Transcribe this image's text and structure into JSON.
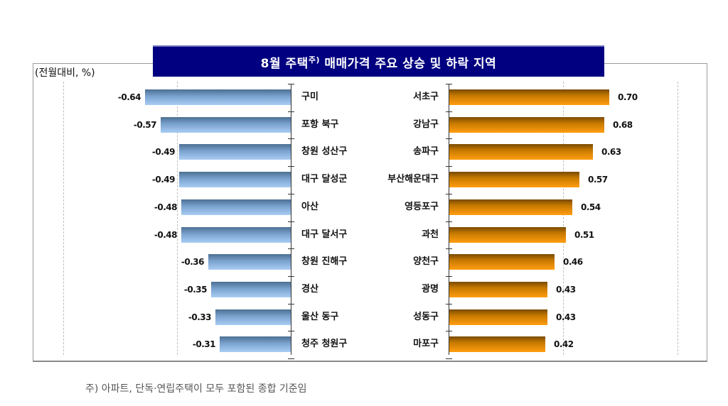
{
  "title": {
    "main_before": "8월 주택",
    "superscript": "주)",
    "main_after": " 매매가격 주요 상승 및 하락 지역"
  },
  "unit_label": "(전월대비, %)",
  "footnote": "주) 아파트, 단독·연립주택이 모두 포함된 종합 기준임",
  "colors": {
    "title_bg": "#000080",
    "decline_bar": "#7aa3cf",
    "rise_bar": "#ff9d10"
  },
  "chart_data": [
    {
      "type": "bar",
      "orientation": "horizontal",
      "title": "8월 주택 매매가격 주요 하락 지역",
      "xlabel": "(전월대비, %)",
      "ylabel": "",
      "categories": [
        "구미",
        "포항 북구",
        "창원 성산구",
        "대구 달성군",
        "아산",
        "대구 달서구",
        "창원 진해구",
        "경산",
        "울산 동구",
        "청주 청원구"
      ],
      "values": [
        -0.64,
        -0.57,
        -0.49,
        -0.49,
        -0.48,
        -0.48,
        -0.36,
        -0.35,
        -0.33,
        -0.31
      ],
      "xlim": [
        -1.0,
        0
      ],
      "grid": true,
      "gridlines": [
        -1.0,
        -0.5
      ]
    },
    {
      "type": "bar",
      "orientation": "horizontal",
      "title": "8월 주택 매매가격 주요 상승 지역",
      "xlabel": "(전월대비, %)",
      "ylabel": "",
      "categories": [
        "서초구",
        "강남구",
        "송파구",
        "부산해운대구",
        "영등포구",
        "과천",
        "양천구",
        "광명",
        "성동구",
        "마포구"
      ],
      "values": [
        0.7,
        0.68,
        0.63,
        0.57,
        0.54,
        0.51,
        0.46,
        0.43,
        0.43,
        0.42
      ],
      "xlim": [
        0,
        1.0
      ],
      "grid": true,
      "gridlines": [
        0.5,
        1.0
      ]
    }
  ],
  "rows": {
    "decline": [
      {
        "label": "구미",
        "value": "-0.64"
      },
      {
        "label": "포항 북구",
        "value": "-0.57"
      },
      {
        "label": "창원 성산구",
        "value": "-0.49"
      },
      {
        "label": "대구 달성군",
        "value": "-0.49"
      },
      {
        "label": "아산",
        "value": "-0.48"
      },
      {
        "label": "대구 달서구",
        "value": "-0.48"
      },
      {
        "label": "창원 진해구",
        "value": "-0.36"
      },
      {
        "label": "경산",
        "value": "-0.35"
      },
      {
        "label": "울산 동구",
        "value": "-0.33"
      },
      {
        "label": "청주 청원구",
        "value": "-0.31"
      }
    ],
    "rise": [
      {
        "label": "서초구",
        "value": "0.70"
      },
      {
        "label": "강남구",
        "value": "0.68"
      },
      {
        "label": "송파구",
        "value": "0.63"
      },
      {
        "label": "부산해운대구",
        "value": "0.57"
      },
      {
        "label": "영등포구",
        "value": "0.54"
      },
      {
        "label": "과천",
        "value": "0.51"
      },
      {
        "label": "양천구",
        "value": "0.46"
      },
      {
        "label": "광명",
        "value": "0.43"
      },
      {
        "label": "성동구",
        "value": "0.43"
      },
      {
        "label": "마포구",
        "value": "0.42"
      }
    ]
  }
}
